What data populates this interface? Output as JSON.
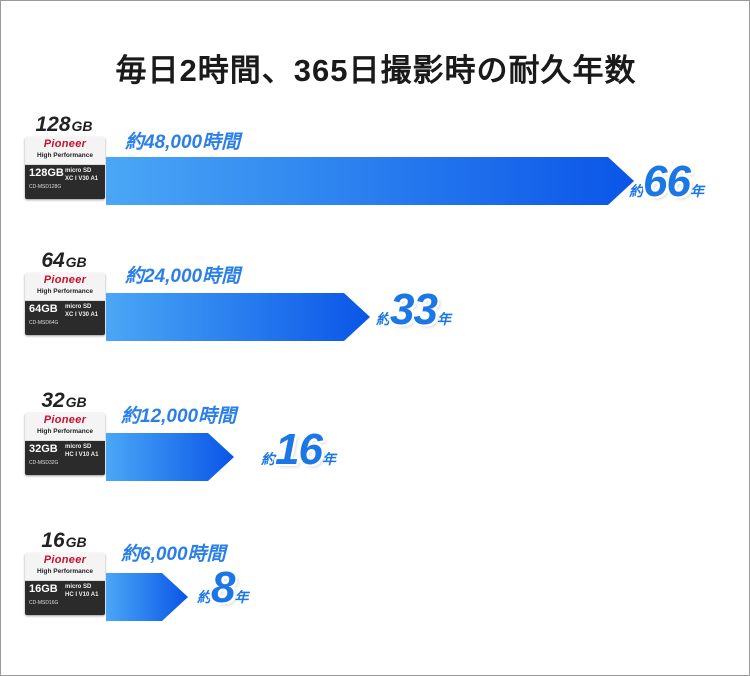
{
  "title": "毎日2時間、365日撮影時の耐久年数",
  "colors": {
    "bar_start": "#4aa7f5",
    "bar_end": "#0a55e8",
    "accent": "#1c77e6"
  },
  "chart_data": {
    "type": "bar",
    "orientation": "horizontal",
    "title": "毎日2時間、365日撮影時の耐久年数",
    "categories": [
      "128GB",
      "64GB",
      "32GB",
      "16GB"
    ],
    "values": [
      66,
      33,
      16,
      8
    ],
    "value_unit": "年",
    "hours": [
      "約48,000時間",
      "約24,000時間",
      "約12,000時間",
      "約6,000時間"
    ],
    "xlim": [
      0,
      66
    ],
    "grid": false,
    "legend": "none"
  },
  "cards": [
    {
      "cap_num": "128",
      "cap_unit": "GB",
      "brand": "Pioneer",
      "sub": "High Performance",
      "card_cap": "128GB",
      "model": "CD-MSD128G",
      "logos": "micro SD XC I V30 A1",
      "approx": "約",
      "years": "66",
      "unit": "年"
    },
    {
      "cap_num": "64",
      "cap_unit": "GB",
      "brand": "Pioneer",
      "sub": "High Performance",
      "card_cap": "64GB",
      "model": "CD-MSD64G",
      "logos": "micro SD XC I V30 A1",
      "approx": "約",
      "years": "33",
      "unit": "年"
    },
    {
      "cap_num": "32",
      "cap_unit": "GB",
      "brand": "Pioneer",
      "sub": "High Performance",
      "card_cap": "32GB",
      "model": "CD-MSD32G",
      "logos": "micro SD HC I V10 A1",
      "approx": "約",
      "years": "16",
      "unit": "年"
    },
    {
      "cap_num": "16",
      "cap_unit": "GB",
      "brand": "Pioneer",
      "sub": "High Performance",
      "card_cap": "16GB",
      "model": "CD-MSD16G",
      "logos": "micro SD HC I V10 A1",
      "approx": "約",
      "years": "8",
      "unit": "年"
    }
  ]
}
